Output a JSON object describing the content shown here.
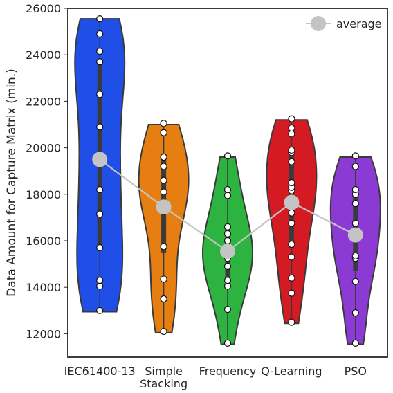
{
  "chart_data": {
    "type": "violin",
    "title": "",
    "xlabel": "",
    "ylabel": "Data Amount for Capture Matrix (min.)",
    "ylim": [
      11000,
      26000
    ],
    "yticks": [
      12000,
      14000,
      16000,
      18000,
      20000,
      22000,
      24000,
      26000
    ],
    "grid": false,
    "legend": {
      "position": "top-right",
      "entries": [
        "average"
      ]
    },
    "categories": [
      {
        "label": [
          "IEC61400-13"
        ],
        "color": "#1f4fe6"
      },
      {
        "label": [
          "Simple",
          "Stacking"
        ],
        "color": "#e67e12"
      },
      {
        "label": [
          "Frequency"
        ],
        "color": "#2db440"
      },
      {
        "label": [
          "Q-Learning"
        ],
        "color": "#d41a22"
      },
      {
        "label": [
          "PSO"
        ],
        "color": "#8b3bd4"
      }
    ],
    "series": [
      {
        "points": [
          13000,
          14050,
          14300,
          15700,
          17150,
          18200,
          19450,
          20900,
          22300,
          23700,
          24150,
          24900,
          25550
        ],
        "average": 19500,
        "min": 12950,
        "max": 25550,
        "q1": 15700,
        "q3": 23700,
        "median": 19450
      },
      {
        "points": [
          12100,
          13500,
          14350,
          15750,
          17250,
          17600,
          18100,
          18600,
          19200,
          19600,
          20650,
          21050
        ],
        "average": 17450,
        "min": 12050,
        "max": 21000,
        "q1": 15500,
        "q3": 19500,
        "median": 17600
      },
      {
        "points": [
          11600,
          13050,
          14050,
          14300,
          14900,
          15250,
          15600,
          16000,
          16300,
          16600,
          17950,
          18200,
          19650
        ],
        "average": 15550,
        "min": 11550,
        "max": 19600,
        "q1": 14400,
        "q3": 16500,
        "median": 15600
      },
      {
        "points": [
          12500,
          13750,
          14400,
          15300,
          15850,
          16750,
          17200,
          17800,
          18150,
          18300,
          18500,
          19400,
          19800,
          19900,
          20600,
          20850,
          21250
        ],
        "average": 17650,
        "min": 12450,
        "max": 21200,
        "q1": 15700,
        "q3": 19700,
        "median": 18300
      },
      {
        "points": [
          11600,
          12900,
          14250,
          15250,
          15350,
          16300,
          16750,
          17600,
          18000,
          18200,
          19200,
          19650
        ],
        "average": 16250,
        "min": 11550,
        "max": 19600,
        "q1": 14700,
        "q3": 18000,
        "median": 16350
      }
    ]
  }
}
